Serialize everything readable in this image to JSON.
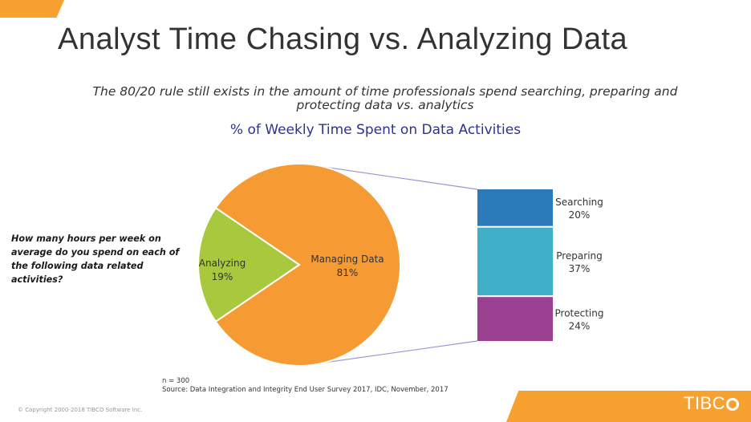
{
  "slide": {
    "title": "Analyst Time Chasing vs. Analyzing Data",
    "subtitle": "The 80/20 rule still exists in the amount of time professionals spend searching, preparing and protecting data vs. analytics",
    "question": "How many hours per week on average do you spend on each of the following data related activities?",
    "note": "n = 300",
    "source": "Source: Data Integration and Integrity End User Survey 2017, IDC, November, 2017",
    "copyright": "© Copyright 2000-2018 TIBCO Software Inc.",
    "logo": "TIBC"
  },
  "colors": {
    "accent": "#f7a130",
    "chart_title": "#2e3192"
  },
  "chart_data": [
    {
      "type": "pie",
      "title": "% of Weekly Time Spent on Data Activities",
      "slices": [
        {
          "label": "Managing Data",
          "value": 81,
          "display": "81%",
          "color": "#f69a33"
        },
        {
          "label": "Analyzing",
          "value": 19,
          "display": "19%",
          "color": "#a8c93e"
        }
      ]
    },
    {
      "type": "bar",
      "stacked": true,
      "breakdown_of": "Managing Data",
      "segments": [
        {
          "label": "Searching",
          "value": 20,
          "display": "20%",
          "color": "#2b7bba"
        },
        {
          "label": "Preparing",
          "value": 37,
          "display": "37%",
          "color": "#40afc8"
        },
        {
          "label": "Protecting",
          "value": 24,
          "display": "24%",
          "color": "#9b4091"
        }
      ]
    }
  ]
}
